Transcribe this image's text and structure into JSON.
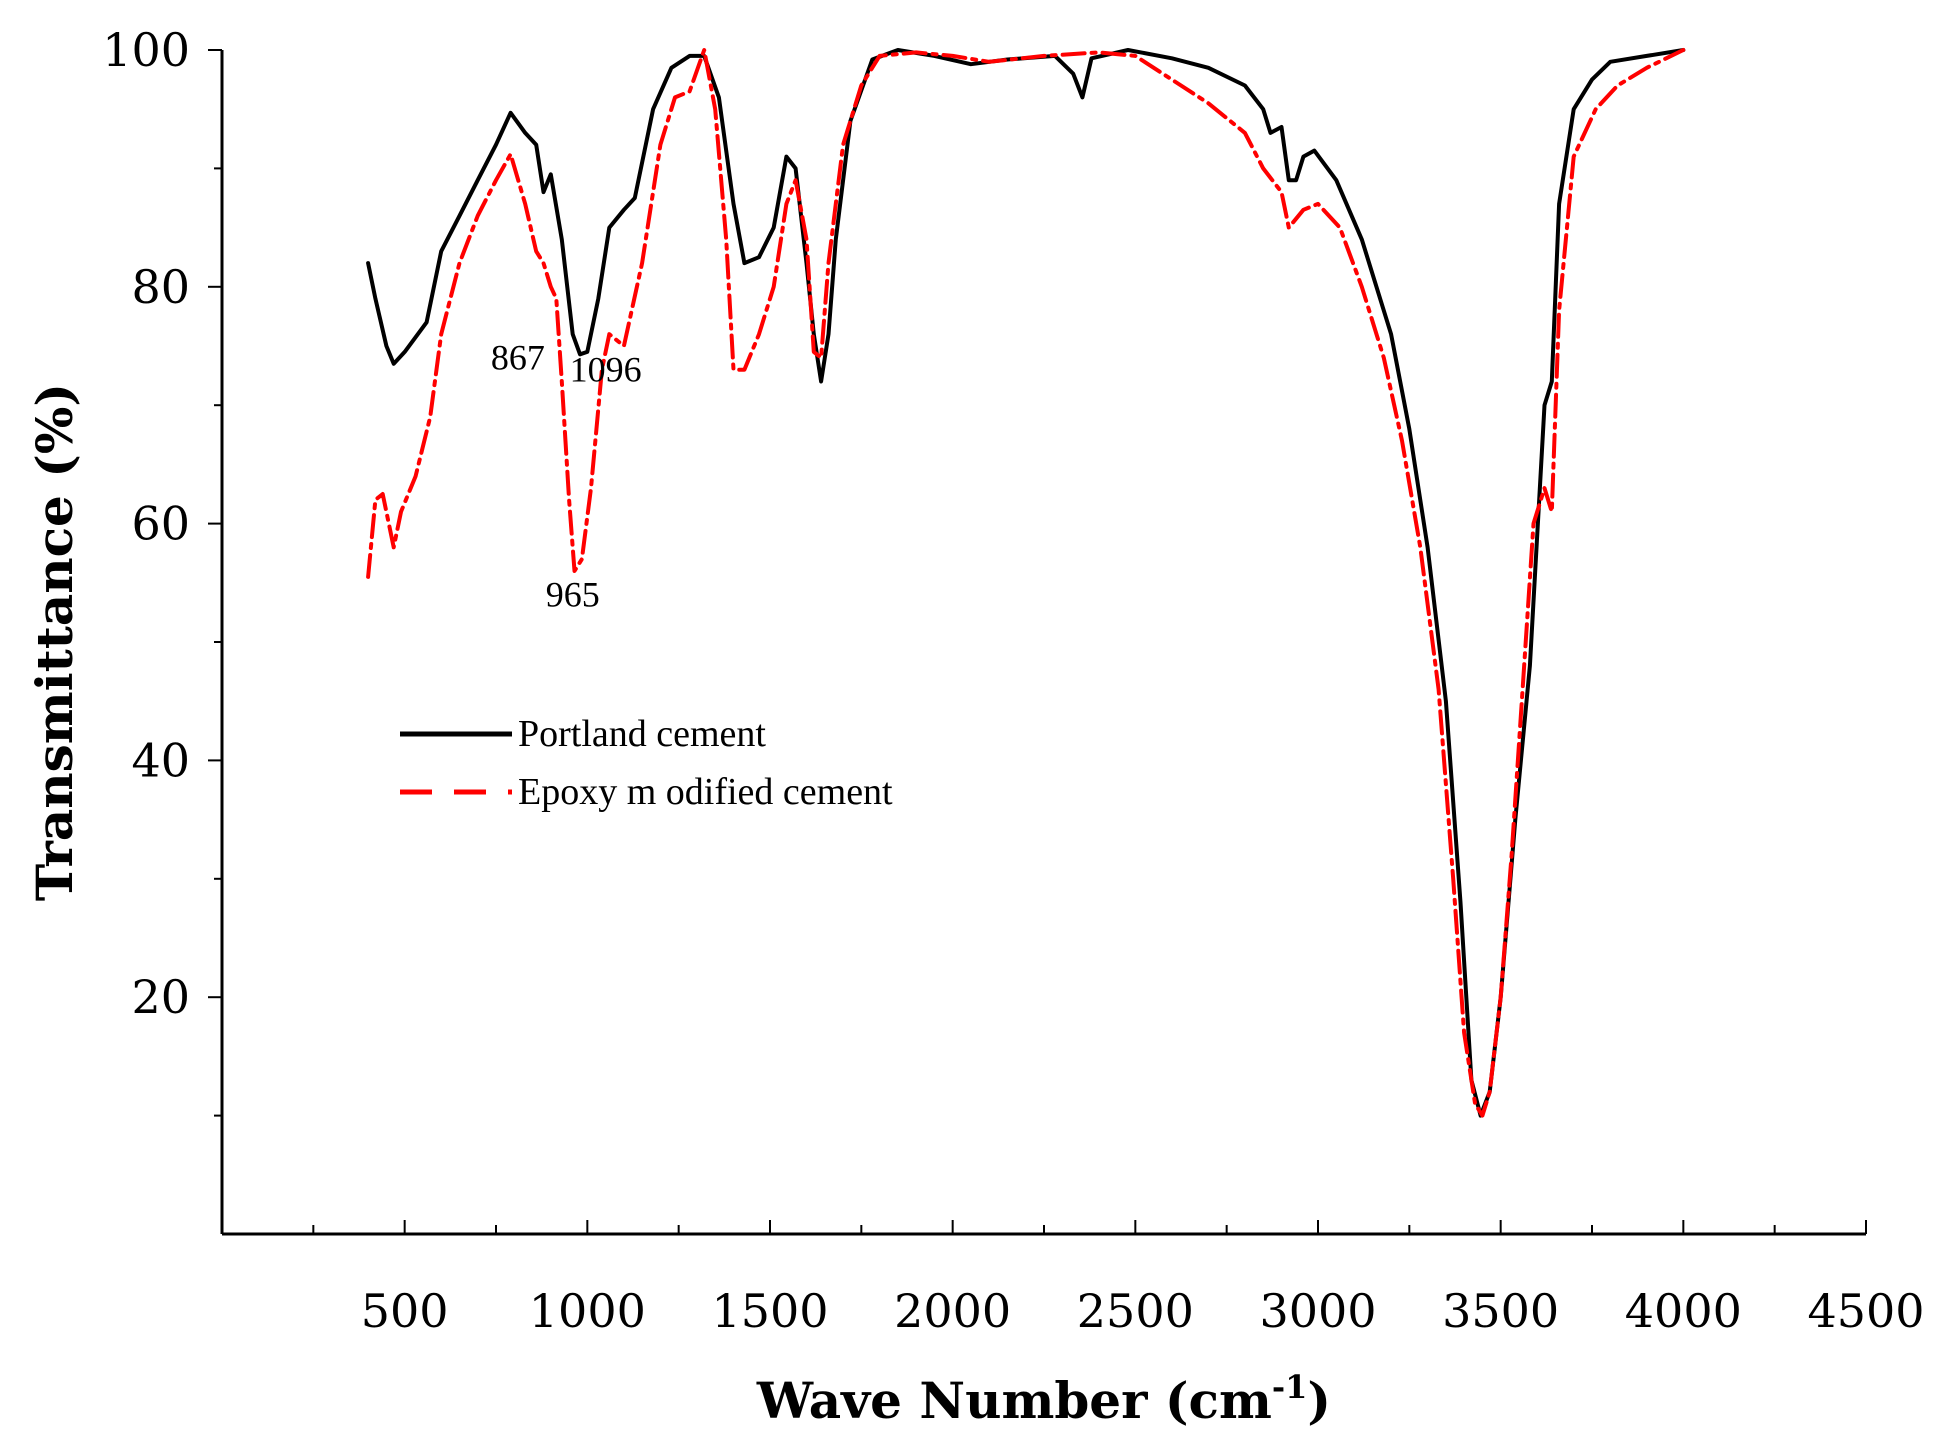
{
  "chart_data": {
    "type": "line",
    "title": "",
    "xlabel": "Wave Number (cm",
    "xlabel_sup": "-1",
    "xlabel_close": ")",
    "ylabel": "Transmittance (%)",
    "xlim": [
      0,
      4500
    ],
    "ylim": [
      0,
      100
    ],
    "x_ticks": [
      500,
      1000,
      1500,
      2000,
      2500,
      3000,
      3500,
      4000,
      4500
    ],
    "y_ticks": [
      20,
      40,
      60,
      80,
      100
    ],
    "grid": false,
    "legend_position": "middle-left",
    "series": [
      {
        "name": "Portland cement",
        "color": "#000000",
        "style": "solid",
        "points": [
          [
            400,
            82
          ],
          [
            420,
            79
          ],
          [
            450,
            75
          ],
          [
            470,
            73.5
          ],
          [
            500,
            74.5
          ],
          [
            560,
            77
          ],
          [
            600,
            83
          ],
          [
            650,
            86
          ],
          [
            700,
            89
          ],
          [
            750,
            92
          ],
          [
            790,
            94.7
          ],
          [
            830,
            93
          ],
          [
            860,
            92
          ],
          [
            880,
            88
          ],
          [
            900,
            89.5
          ],
          [
            930,
            84
          ],
          [
            960,
            76
          ],
          [
            980,
            74.3
          ],
          [
            1000,
            74.5
          ],
          [
            1030,
            79
          ],
          [
            1060,
            85
          ],
          [
            1100,
            86.5
          ],
          [
            1130,
            87.5
          ],
          [
            1180,
            95
          ],
          [
            1230,
            98.5
          ],
          [
            1280,
            99.5
          ],
          [
            1320,
            99.5
          ],
          [
            1360,
            96
          ],
          [
            1400,
            87
          ],
          [
            1430,
            82
          ],
          [
            1470,
            82.5
          ],
          [
            1510,
            85
          ],
          [
            1545,
            91
          ],
          [
            1570,
            90
          ],
          [
            1600,
            82
          ],
          [
            1620,
            76
          ],
          [
            1640,
            72
          ],
          [
            1660,
            76
          ],
          [
            1680,
            84
          ],
          [
            1720,
            94
          ],
          [
            1780,
            99.2
          ],
          [
            1850,
            100
          ],
          [
            1950,
            99.5
          ],
          [
            2050,
            98.8
          ],
          [
            2150,
            99.2
          ],
          [
            2280,
            99.5
          ],
          [
            2330,
            98
          ],
          [
            2355,
            96
          ],
          [
            2380,
            99.3
          ],
          [
            2480,
            100
          ],
          [
            2600,
            99.3
          ],
          [
            2700,
            98.5
          ],
          [
            2800,
            97
          ],
          [
            2850,
            95
          ],
          [
            2870,
            93
          ],
          [
            2900,
            93.5
          ],
          [
            2920,
            89
          ],
          [
            2940,
            89
          ],
          [
            2960,
            91
          ],
          [
            2990,
            91.5
          ],
          [
            3050,
            89
          ],
          [
            3120,
            84
          ],
          [
            3200,
            76
          ],
          [
            3250,
            68
          ],
          [
            3300,
            58
          ],
          [
            3350,
            45
          ],
          [
            3390,
            28
          ],
          [
            3420,
            13
          ],
          [
            3445,
            10
          ],
          [
            3470,
            12
          ],
          [
            3500,
            20
          ],
          [
            3540,
            35
          ],
          [
            3580,
            48
          ],
          [
            3620,
            70
          ],
          [
            3640,
            72
          ],
          [
            3660,
            87
          ],
          [
            3700,
            95
          ],
          [
            3750,
            97.5
          ],
          [
            3800,
            99
          ],
          [
            3900,
            99.5
          ],
          [
            4000,
            100
          ]
        ]
      },
      {
        "name": "Epoxy modified cement",
        "legend_label": "Epoxy m odified cement",
        "color": "#ff0000",
        "style": "dash-dot",
        "points": [
          [
            400,
            55.5
          ],
          [
            420,
            62
          ],
          [
            440,
            62.5
          ],
          [
            470,
            58
          ],
          [
            490,
            61
          ],
          [
            530,
            64
          ],
          [
            570,
            69
          ],
          [
            600,
            76
          ],
          [
            650,
            82
          ],
          [
            700,
            86
          ],
          [
            750,
            89
          ],
          [
            790,
            91.2
          ],
          [
            830,
            87
          ],
          [
            860,
            83
          ],
          [
            880,
            82
          ],
          [
            900,
            80
          ],
          [
            915,
            79
          ],
          [
            930,
            72
          ],
          [
            950,
            62
          ],
          [
            965,
            56
          ],
          [
            985,
            57
          ],
          [
            1010,
            63
          ],
          [
            1040,
            73
          ],
          [
            1060,
            76
          ],
          [
            1100,
            75
          ],
          [
            1150,
            82
          ],
          [
            1200,
            92
          ],
          [
            1240,
            96
          ],
          [
            1280,
            96.5
          ],
          [
            1320,
            100
          ],
          [
            1350,
            95
          ],
          [
            1380,
            84
          ],
          [
            1400,
            73
          ],
          [
            1430,
            73
          ],
          [
            1470,
            76
          ],
          [
            1510,
            80
          ],
          [
            1545,
            87
          ],
          [
            1570,
            89
          ],
          [
            1600,
            84
          ],
          [
            1620,
            74.5
          ],
          [
            1640,
            74
          ],
          [
            1660,
            82
          ],
          [
            1700,
            92
          ],
          [
            1750,
            97
          ],
          [
            1800,
            99.5
          ],
          [
            1900,
            99.8
          ],
          [
            2000,
            99.5
          ],
          [
            2100,
            99
          ],
          [
            2250,
            99.5
          ],
          [
            2400,
            99.8
          ],
          [
            2500,
            99.5
          ],
          [
            2600,
            97.5
          ],
          [
            2700,
            95.5
          ],
          [
            2800,
            93
          ],
          [
            2850,
            90
          ],
          [
            2900,
            88
          ],
          [
            2920,
            85
          ],
          [
            2960,
            86.5
          ],
          [
            3000,
            87
          ],
          [
            3060,
            85
          ],
          [
            3120,
            80
          ],
          [
            3180,
            74
          ],
          [
            3230,
            67
          ],
          [
            3280,
            58
          ],
          [
            3330,
            46
          ],
          [
            3370,
            30
          ],
          [
            3400,
            17
          ],
          [
            3430,
            11
          ],
          [
            3450,
            10
          ],
          [
            3470,
            12
          ],
          [
            3500,
            20
          ],
          [
            3530,
            32
          ],
          [
            3560,
            46
          ],
          [
            3590,
            60
          ],
          [
            3620,
            63
          ],
          [
            3640,
            61
          ],
          [
            3660,
            78
          ],
          [
            3700,
            91
          ],
          [
            3760,
            95
          ],
          [
            3820,
            97
          ],
          [
            3900,
            98.5
          ],
          [
            4000,
            100
          ]
        ]
      }
    ],
    "annotations": [
      {
        "text": "867",
        "x": 810,
        "y": 73
      },
      {
        "text": "1096",
        "x": 1050,
        "y": 72
      },
      {
        "text": "965",
        "x": 960,
        "y": 53
      }
    ]
  }
}
